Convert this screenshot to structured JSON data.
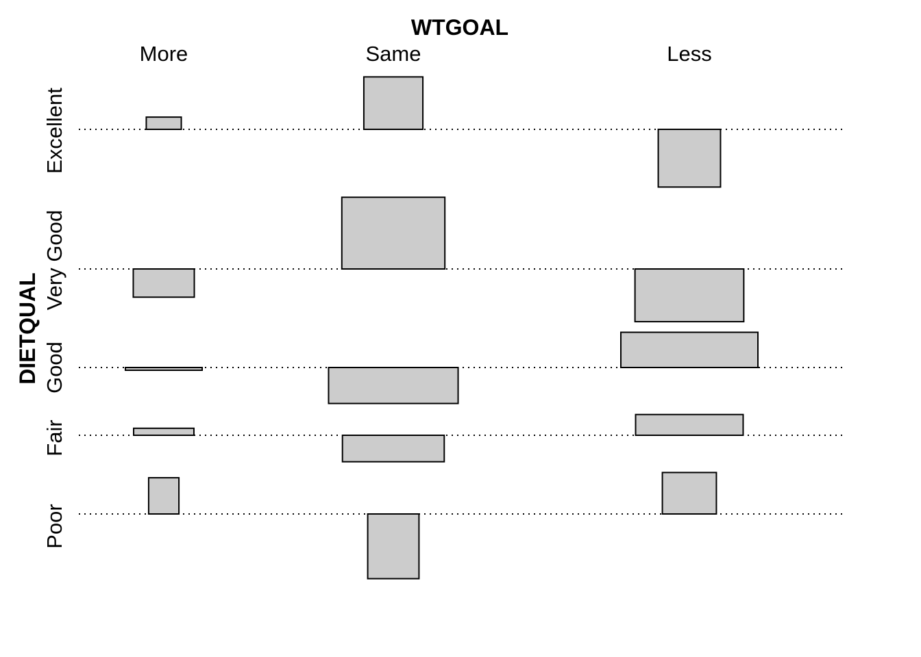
{
  "chart_data": {
    "type": "association-plot",
    "x_title": "WTGOAL",
    "y_title": "DIETQUAL",
    "columns": [
      "More",
      "Same",
      "Less"
    ],
    "rows": [
      "Excellent",
      "Very Good",
      "Good",
      "Fair",
      "Poor"
    ],
    "bar_color": "#cccccc",
    "baseline_style": "dotted",
    "cells": [
      {
        "row": "Excellent",
        "col": "More",
        "sqrt_expected": 1.4,
        "residual": 0.49
      },
      {
        "row": "Excellent",
        "col": "Same",
        "sqrt_expected": 2.36,
        "residual": 2.1
      },
      {
        "row": "Excellent",
        "col": "Less",
        "sqrt_expected": 2.49,
        "residual": -2.31
      },
      {
        "row": "Very Good",
        "col": "More",
        "sqrt_expected": 2.44,
        "residual": -1.13
      },
      {
        "row": "Very Good",
        "col": "Same",
        "sqrt_expected": 4.12,
        "residual": 2.87
      },
      {
        "row": "Very Good",
        "col": "Less",
        "sqrt_expected": 4.35,
        "residual": -2.11
      },
      {
        "row": "Good",
        "col": "More",
        "sqrt_expected": 3.07,
        "residual": -0.11
      },
      {
        "row": "Good",
        "col": "Same",
        "sqrt_expected": 5.18,
        "residual": -1.44
      },
      {
        "row": "Good",
        "col": "Less",
        "sqrt_expected": 5.48,
        "residual": 1.41
      },
      {
        "row": "Fair",
        "col": "More",
        "sqrt_expected": 2.41,
        "residual": 0.28
      },
      {
        "row": "Fair",
        "col": "Same",
        "sqrt_expected": 4.07,
        "residual": -1.06
      },
      {
        "row": "Fair",
        "col": "Less",
        "sqrt_expected": 4.3,
        "residual": 0.83
      },
      {
        "row": "Poor",
        "col": "More",
        "sqrt_expected": 1.21,
        "residual": 1.45
      },
      {
        "row": "Poor",
        "col": "Same",
        "sqrt_expected": 2.05,
        "residual": -2.59
      },
      {
        "row": "Poor",
        "col": "Less",
        "sqrt_expected": 2.16,
        "residual": 1.66
      }
    ]
  }
}
